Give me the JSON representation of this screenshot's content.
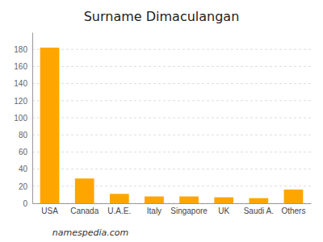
{
  "chart_data": {
    "type": "bar",
    "title": "Surname Dimaculangan",
    "categories": [
      "USA",
      "Canada",
      "U.A.E.",
      "Italy",
      "Singapore",
      "UK",
      "Saudi A.",
      "Others"
    ],
    "values": [
      182,
      29,
      11,
      8,
      8,
      7,
      6,
      16
    ],
    "color": "#FFA500",
    "ylim": [
      0,
      200
    ],
    "yticks": [
      0,
      20,
      40,
      60,
      80,
      100,
      120,
      140,
      160,
      180
    ],
    "grid": true,
    "annotations": [
      "namespedia.com"
    ]
  }
}
